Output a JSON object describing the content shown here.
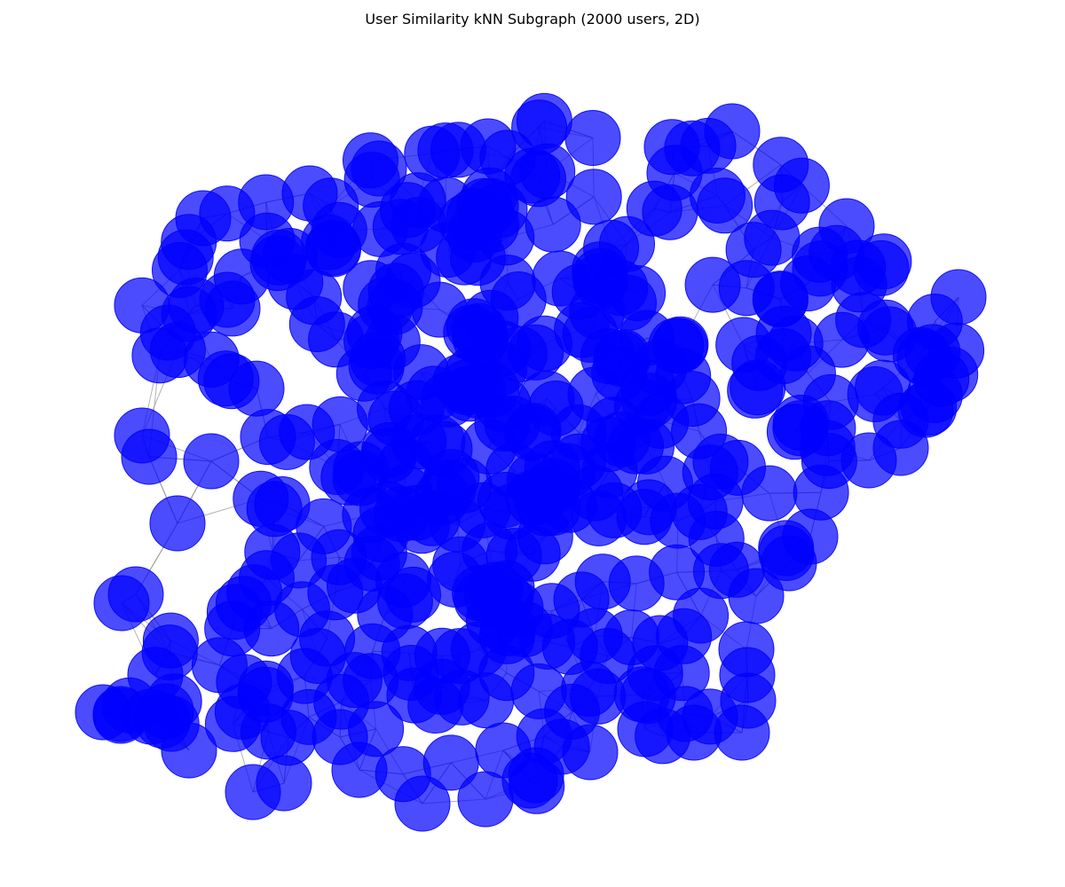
{
  "chart_data": {
    "type": "scatter",
    "title": "User Similarity kNN Subgraph (2000 users, 2D)",
    "grid": false,
    "legend": "none",
    "node_count": 2000,
    "node_color": "#0000ff",
    "node_alpha": 0.7,
    "edge_color": "#808080",
    "edge_alpha": 0.6
  }
}
